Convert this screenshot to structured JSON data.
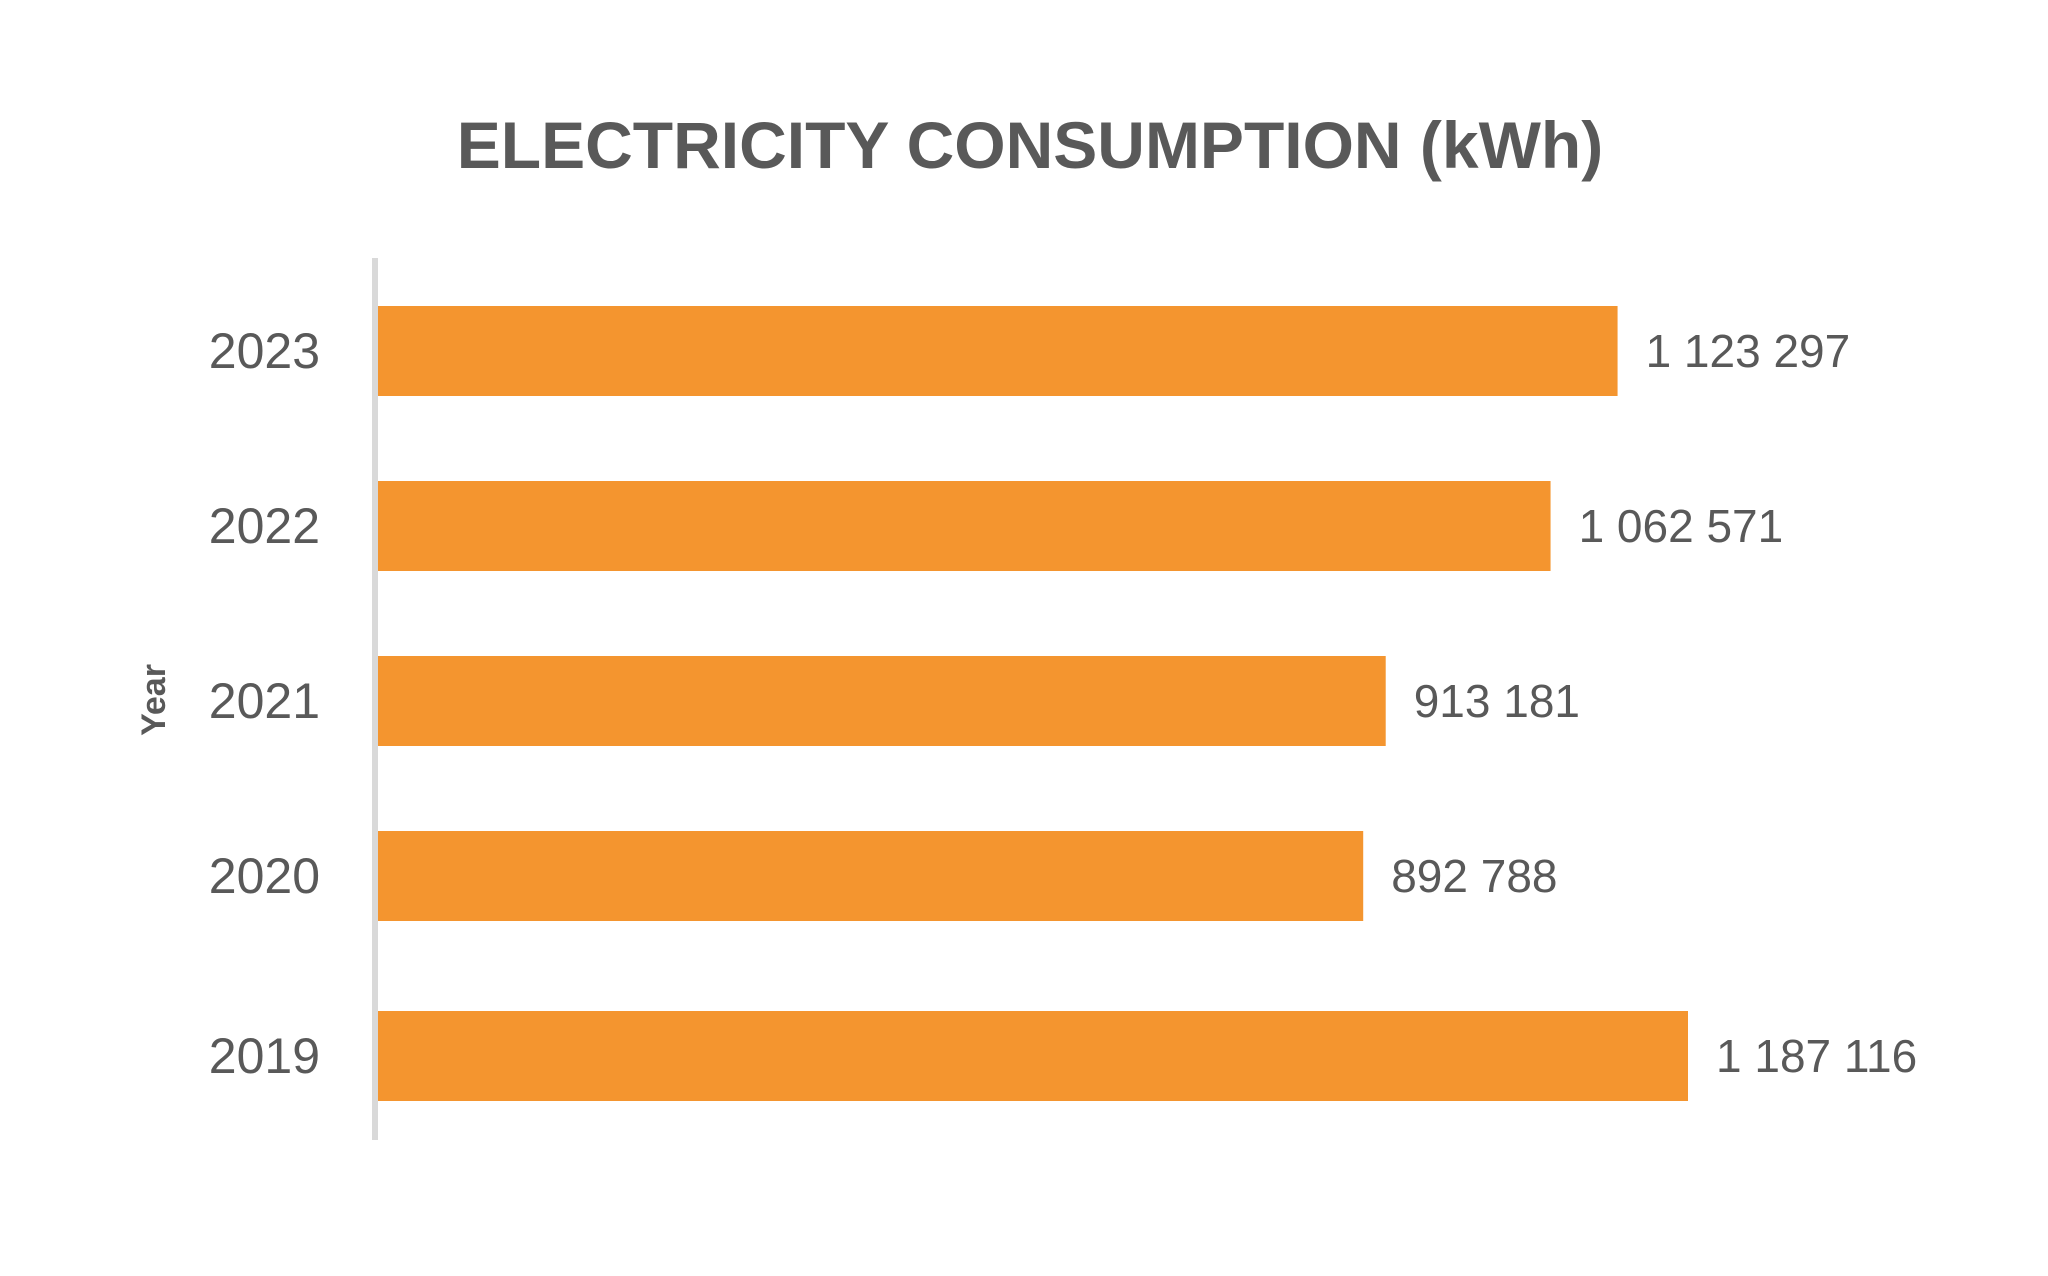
{
  "chart_data": {
    "type": "bar",
    "orientation": "horizontal",
    "title": "ELECTRICITY CONSUMPTION (kWh)",
    "ylabel": "Year",
    "xlabel": "",
    "categories": [
      "2023",
      "2022",
      "2021",
      "2020",
      "2019"
    ],
    "values": [
      1123297,
      1062571,
      913181,
      892788,
      1187116
    ],
    "data_labels": [
      "1 123 297",
      "1 062 571",
      "913 181",
      "892 788",
      "1 187 116"
    ],
    "xlim": [
      0,
      1420000
    ],
    "grid": false,
    "legend": "none",
    "colors": {
      "bar": "#F4952F",
      "text": "#595959",
      "axis": "#D9D9D9"
    }
  }
}
